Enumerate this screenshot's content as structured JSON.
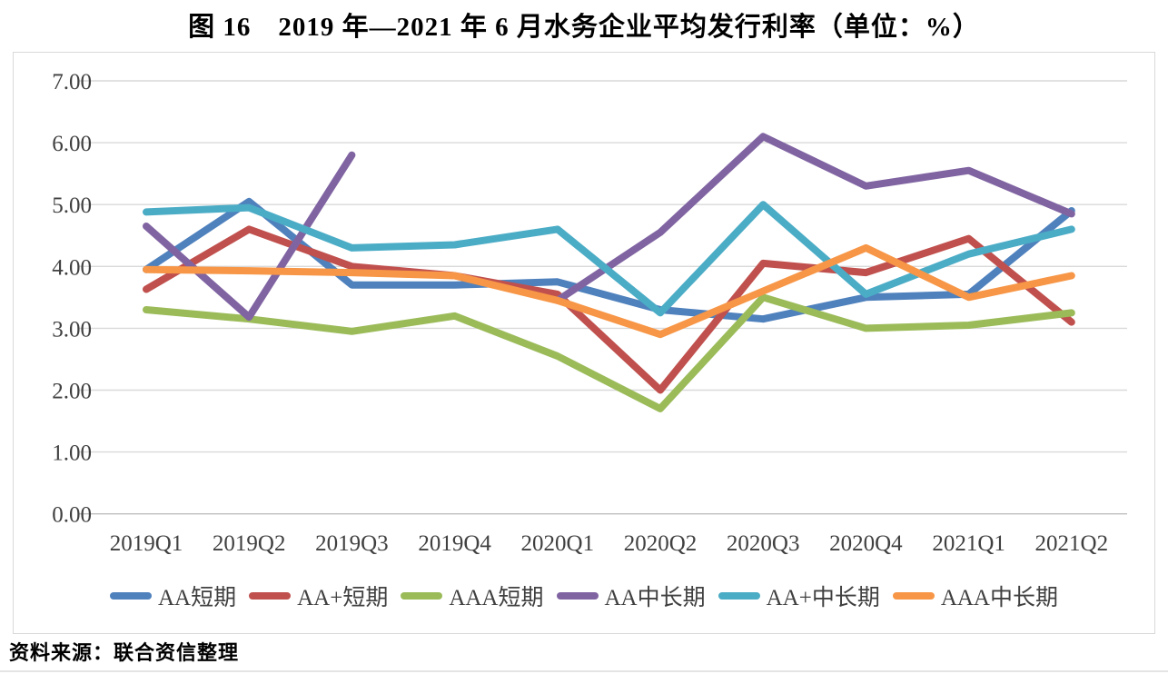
{
  "title": "图 16　2019 年—2021 年 6 月水务企业平均发行利率（单位：%）",
  "source": "资料来源：联合资信整理",
  "chart_data": {
    "type": "line",
    "title": "图 16　2019 年—2021 年 6 月水务企业平均发行利率（单位：%）",
    "xlabel": "",
    "ylabel": "",
    "unit": "%",
    "ylim": [
      0,
      7
    ],
    "y_ticks": [
      "0.00",
      "1.00",
      "2.00",
      "3.00",
      "4.00",
      "5.00",
      "6.00",
      "7.00"
    ],
    "grid": "horizontal",
    "legend_position": "bottom",
    "gridline_color": "#d9d9d9",
    "axis_line_color": "#bfbfbf",
    "tick_label_color": "#404040",
    "categories": [
      "2019Q1",
      "2019Q2",
      "2019Q3",
      "2019Q4",
      "2020Q1",
      "2020Q2",
      "2020Q3",
      "2020Q4",
      "2021Q1",
      "2021Q2"
    ],
    "series": [
      {
        "name": "AA短期",
        "color": "#4F81BD",
        "values": [
          3.95,
          5.05,
          3.7,
          3.7,
          3.75,
          3.3,
          3.15,
          3.5,
          3.55,
          4.9
        ]
      },
      {
        "name": "AA+短期",
        "color": "#C0504D",
        "values": [
          3.63,
          4.6,
          4.0,
          3.85,
          3.55,
          2.0,
          4.05,
          3.9,
          4.45,
          3.1
        ]
      },
      {
        "name": "AAA短期",
        "color": "#9BBB59",
        "values": [
          3.3,
          3.15,
          2.95,
          3.2,
          2.55,
          1.7,
          3.5,
          3.0,
          3.05,
          3.25
        ]
      },
      {
        "name": "AA中长期",
        "color": "#8064A2",
        "values": [
          4.65,
          3.18,
          5.8,
          null,
          3.45,
          4.55,
          6.1,
          5.3,
          5.55,
          4.85
        ]
      },
      {
        "name": "AA+中长期",
        "color": "#4BACC6",
        "values": [
          4.88,
          4.95,
          4.3,
          4.35,
          4.6,
          3.25,
          5.0,
          3.55,
          4.2,
          4.6
        ]
      },
      {
        "name": "AAA中长期",
        "color": "#F79646",
        "values": [
          3.95,
          3.93,
          3.9,
          3.85,
          3.45,
          2.9,
          3.6,
          4.3,
          3.5,
          3.85
        ]
      }
    ]
  }
}
